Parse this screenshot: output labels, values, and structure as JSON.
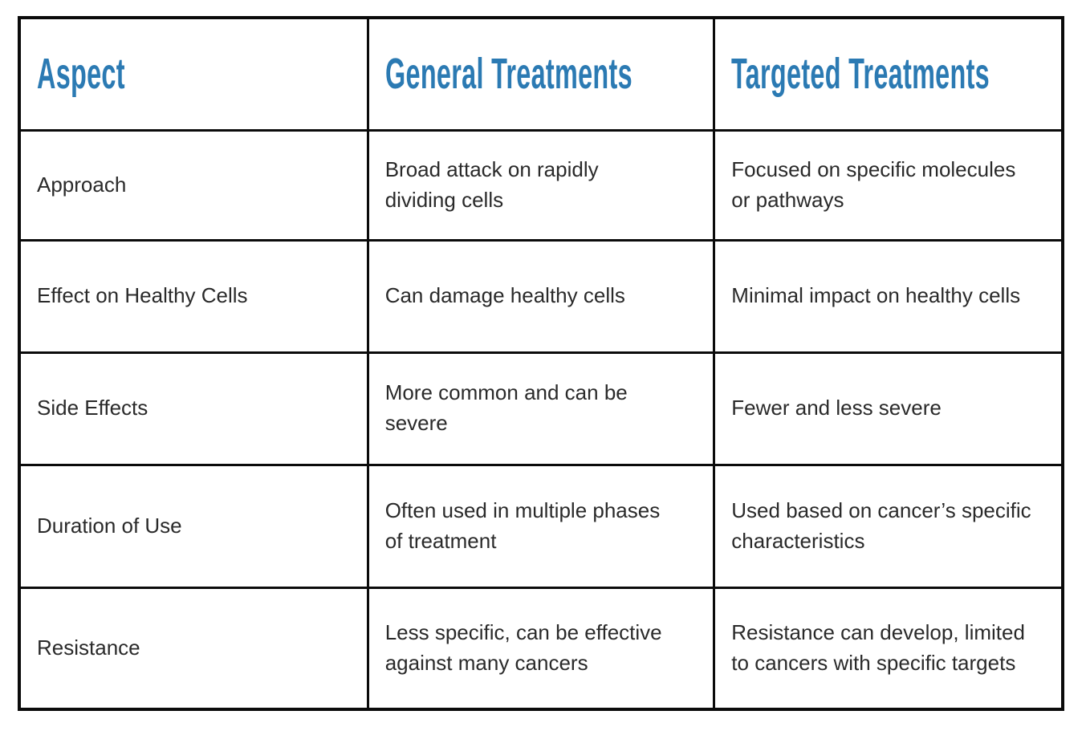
{
  "theme": {
    "header_text_color": "#2b7ab3",
    "body_text_color": "#2a2a2a",
    "border_color": "#0b0b0b",
    "cell_background": "#ffffff"
  },
  "table": {
    "headers": [
      "Aspect",
      "General Treatments",
      "Targeted Treatments"
    ],
    "rows": [
      {
        "aspect": "Approach",
        "general": "Broad attack on rapidly\ndividing cells",
        "targeted": "Focused on specific molecules\nor pathways"
      },
      {
        "aspect": "Effect on Healthy Cells",
        "general": "Can damage healthy cells",
        "targeted": "Minimal impact on healthy cells"
      },
      {
        "aspect": "Side Effects",
        "general": "More common and can be\nsevere",
        "targeted": "Fewer and less severe"
      },
      {
        "aspect": "Duration of Use",
        "general": "Often used in multiple phases\nof treatment",
        "targeted": "Used based on cancer’s specific\ncharacteristics"
      },
      {
        "aspect": "Resistance",
        "general": "Less specific, can be effective\nagainst many cancers",
        "targeted": "Resistance can develop, limited\nto cancers with specific targets"
      }
    ]
  }
}
